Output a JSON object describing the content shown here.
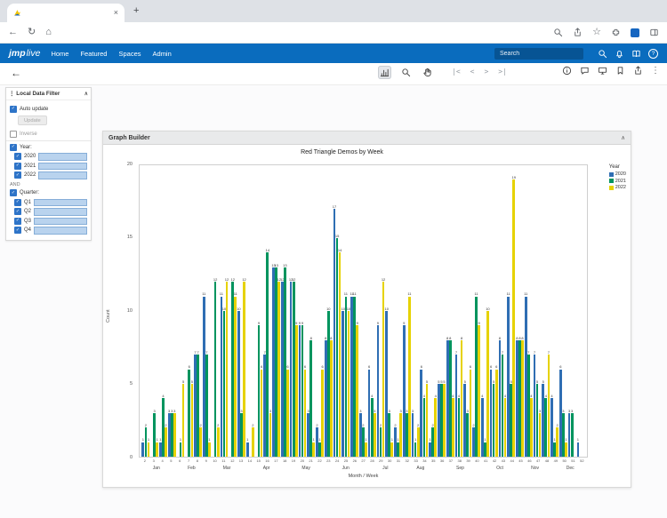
{
  "icons": {
    "back": "←",
    "refresh": "↻",
    "home": "⌂",
    "star": "☆",
    "menu_dots": "⋮",
    "drag_dots": "⋮",
    "chevron_up": "∧",
    "help": "?",
    "nav_first": "|<",
    "nav_prev": "<",
    "nav_next": ">",
    "nav_last": ">|",
    "new_tab": "+",
    "tab_close": "×"
  },
  "nav": {
    "brand_jmp": "jmp",
    "brand_live": "live",
    "links": [
      "Home",
      "Featured",
      "Spaces",
      "Admin"
    ],
    "search_placeholder": "Search"
  },
  "filter": {
    "title": "Local Data Filter",
    "auto_update_label": "Auto update",
    "auto_update_checked": true,
    "update_label": "Update",
    "inverse_label": "Inverse",
    "inverse_checked": false,
    "year_label": "Year:",
    "year_items": [
      "2020",
      "2021",
      "2022"
    ],
    "and_label": "AND",
    "quarter_label": "Quarter:",
    "quarter_items": [
      "Q1",
      "Q2",
      "Q3",
      "Q4"
    ]
  },
  "graph": {
    "panel_title": "Graph Builder"
  },
  "chart_data": {
    "type": "bar",
    "title": "Red Triangle Demos by Week",
    "xlabel": "Month / Week",
    "ylabel": "Count",
    "ylim": [
      0,
      20
    ],
    "yticks": [
      0,
      5,
      10,
      15,
      20
    ],
    "legend_title": "Year",
    "legend_position": "right",
    "grid": false,
    "colors": [
      "#2f6eb3",
      "#00945e",
      "#e6d200"
    ],
    "weeks": [
      2,
      3,
      4,
      5,
      6,
      7,
      8,
      9,
      10,
      11,
      12,
      13,
      14,
      15,
      16,
      17,
      18,
      19,
      20,
      21,
      22,
      23,
      24,
      25,
      26,
      27,
      28,
      29,
      30,
      31,
      32,
      33,
      34,
      35,
      36,
      37,
      38,
      39,
      40,
      41,
      42,
      43,
      44,
      45,
      46,
      47,
      48,
      49,
      50,
      51,
      52
    ],
    "months": [
      {
        "name": "Jan",
        "weeks": 4
      },
      {
        "name": "Feb",
        "weeks": 4
      },
      {
        "name": "Mar",
        "weeks": 4
      },
      {
        "name": "Apr",
        "weeks": 5
      },
      {
        "name": "May",
        "weeks": 4
      },
      {
        "name": "Jun",
        "weeks": 5
      },
      {
        "name": "Jul",
        "weeks": 4
      },
      {
        "name": "Aug",
        "weeks": 4
      },
      {
        "name": "Sep",
        "weeks": 5
      },
      {
        "name": "Oct",
        "weeks": 4
      },
      {
        "name": "Nov",
        "weeks": 4
      },
      {
        "name": "Dec",
        "weeks": 4
      }
    ],
    "series": [
      {
        "name": "2020",
        "values": [
          1,
          0,
          1,
          3,
          0,
          0,
          7,
          11,
          0,
          11,
          0,
          10,
          1,
          0,
          7,
          13,
          12,
          12,
          9,
          3,
          2,
          8,
          17,
          10,
          11,
          3,
          6,
          9,
          10,
          2,
          9,
          3,
          6,
          1,
          5,
          8,
          7,
          5,
          2,
          4,
          6,
          8,
          11,
          8,
          11,
          7,
          5,
          4,
          6,
          3,
          1
        ]
      },
      {
        "name": "2021",
        "values": [
          2,
          3,
          4,
          3,
          1,
          6,
          7,
          7,
          12,
          10,
          12,
          3,
          0,
          9,
          14,
          13,
          13,
          12,
          9,
          8,
          1,
          10,
          15,
          11,
          11,
          2,
          4,
          2,
          3,
          1,
          3,
          1,
          4,
          2,
          5,
          8,
          4,
          3,
          11,
          1,
          5,
          7,
          5,
          8,
          7,
          5,
          4,
          1,
          3,
          3,
          0
        ]
      },
      {
        "name": "2022",
        "values": [
          1,
          1,
          2,
          3,
          5,
          5,
          2,
          1,
          2,
          12,
          11,
          12,
          2,
          6,
          3,
          12,
          6,
          9,
          6,
          1,
          6,
          8,
          14,
          10,
          9,
          1,
          3,
          12,
          1,
          3,
          11,
          2,
          5,
          4,
          5,
          4,
          8,
          6,
          9,
          10,
          6,
          4,
          19,
          8,
          4,
          3,
          7,
          2,
          1,
          0,
          0
        ]
      }
    ]
  }
}
